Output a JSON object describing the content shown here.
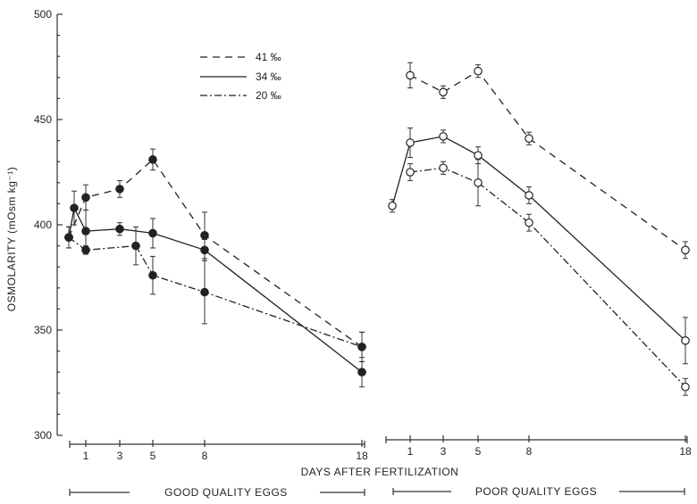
{
  "chart_data": {
    "type": "line",
    "ylabel": "OSMOLARITY (mOsm kg⁻¹)",
    "xlabel": "DAYS AFTER FERTILIZATION",
    "ylim": [
      300,
      500
    ],
    "yticks": [
      300,
      350,
      400,
      450,
      500
    ],
    "legend_placement": "top-center",
    "legend": [
      {
        "label": "41 ‰",
        "style": "dashed"
      },
      {
        "label": "34 ‰",
        "style": "solid"
      },
      {
        "label": "20 ‰",
        "style": "dash-dot"
      }
    ],
    "panels": [
      {
        "name": "GOOD QUALITY EGGS",
        "xticks": [
          1,
          3,
          5,
          8,
          18
        ],
        "marker": "filled",
        "series": [
          {
            "style": "dashed",
            "points": [
              {
                "x": 0,
                "y": 394,
                "err": 5
              },
              {
                "x": 1,
                "y": 413,
                "err": 6
              },
              {
                "x": 3,
                "y": 417,
                "err": 4
              },
              {
                "x": 5,
                "y": 431,
                "err": 5
              },
              {
                "x": 8,
                "y": 395,
                "err": 11
              },
              {
                "x": 18,
                "y": 342,
                "err": 7
              }
            ]
          },
          {
            "style": "solid",
            "points": [
              {
                "x": 0,
                "y": 394,
                "err": 5
              },
              {
                "x": 0.5,
                "y": 408,
                "err": 8
              },
              {
                "x": 1,
                "y": 397,
                "err": 10
              },
              {
                "x": 3,
                "y": 398,
                "err": 3
              },
              {
                "x": 5,
                "y": 396,
                "err": 7
              },
              {
                "x": 8,
                "y": 388,
                "err": 5
              },
              {
                "x": 18,
                "y": 330,
                "err": 7
              }
            ]
          },
          {
            "style": "dash-dot",
            "points": [
              {
                "x": 0,
                "y": 394,
                "err": 5
              },
              {
                "x": 1,
                "y": 388,
                "err": 2
              },
              {
                "x": 4,
                "y": 390,
                "err": 9
              },
              {
                "x": 5,
                "y": 376,
                "err": 9
              },
              {
                "x": 8,
                "y": 368,
                "err": 15
              },
              {
                "x": 18,
                "y": 342,
                "err": 7
              }
            ]
          }
        ]
      },
      {
        "name": "POOR QUALITY EGGS",
        "xticks": [
          1,
          3,
          5,
          8,
          18
        ],
        "marker": "open",
        "series": [
          {
            "style": "dashed",
            "points": [
              {
                "x": 1,
                "y": 471,
                "err": 6
              },
              {
                "x": 3,
                "y": 463,
                "err": 3
              },
              {
                "x": 5,
                "y": 473,
                "err": 3
              },
              {
                "x": 8,
                "y": 441,
                "err": 3
              },
              {
                "x": 18,
                "y": 388,
                "err": 4
              }
            ]
          },
          {
            "style": "solid",
            "points": [
              {
                "x": 0,
                "y": 409,
                "err": 3
              },
              {
                "x": 1,
                "y": 439,
                "err": 7
              },
              {
                "x": 3,
                "y": 442,
                "err": 3
              },
              {
                "x": 5,
                "y": 433,
                "err": 4
              },
              {
                "x": 8,
                "y": 414,
                "err": 4
              },
              {
                "x": 18,
                "y": 345,
                "err": 11
              }
            ]
          },
          {
            "style": "dash-dot",
            "points": [
              {
                "x": 1,
                "y": 425,
                "err": 4
              },
              {
                "x": 3,
                "y": 427,
                "err": 3
              },
              {
                "x": 5,
                "y": 420,
                "err": 11
              },
              {
                "x": 8,
                "y": 401,
                "err": 4
              },
              {
                "x": 18,
                "y": 323,
                "err": 4
              }
            ]
          }
        ]
      }
    ]
  }
}
